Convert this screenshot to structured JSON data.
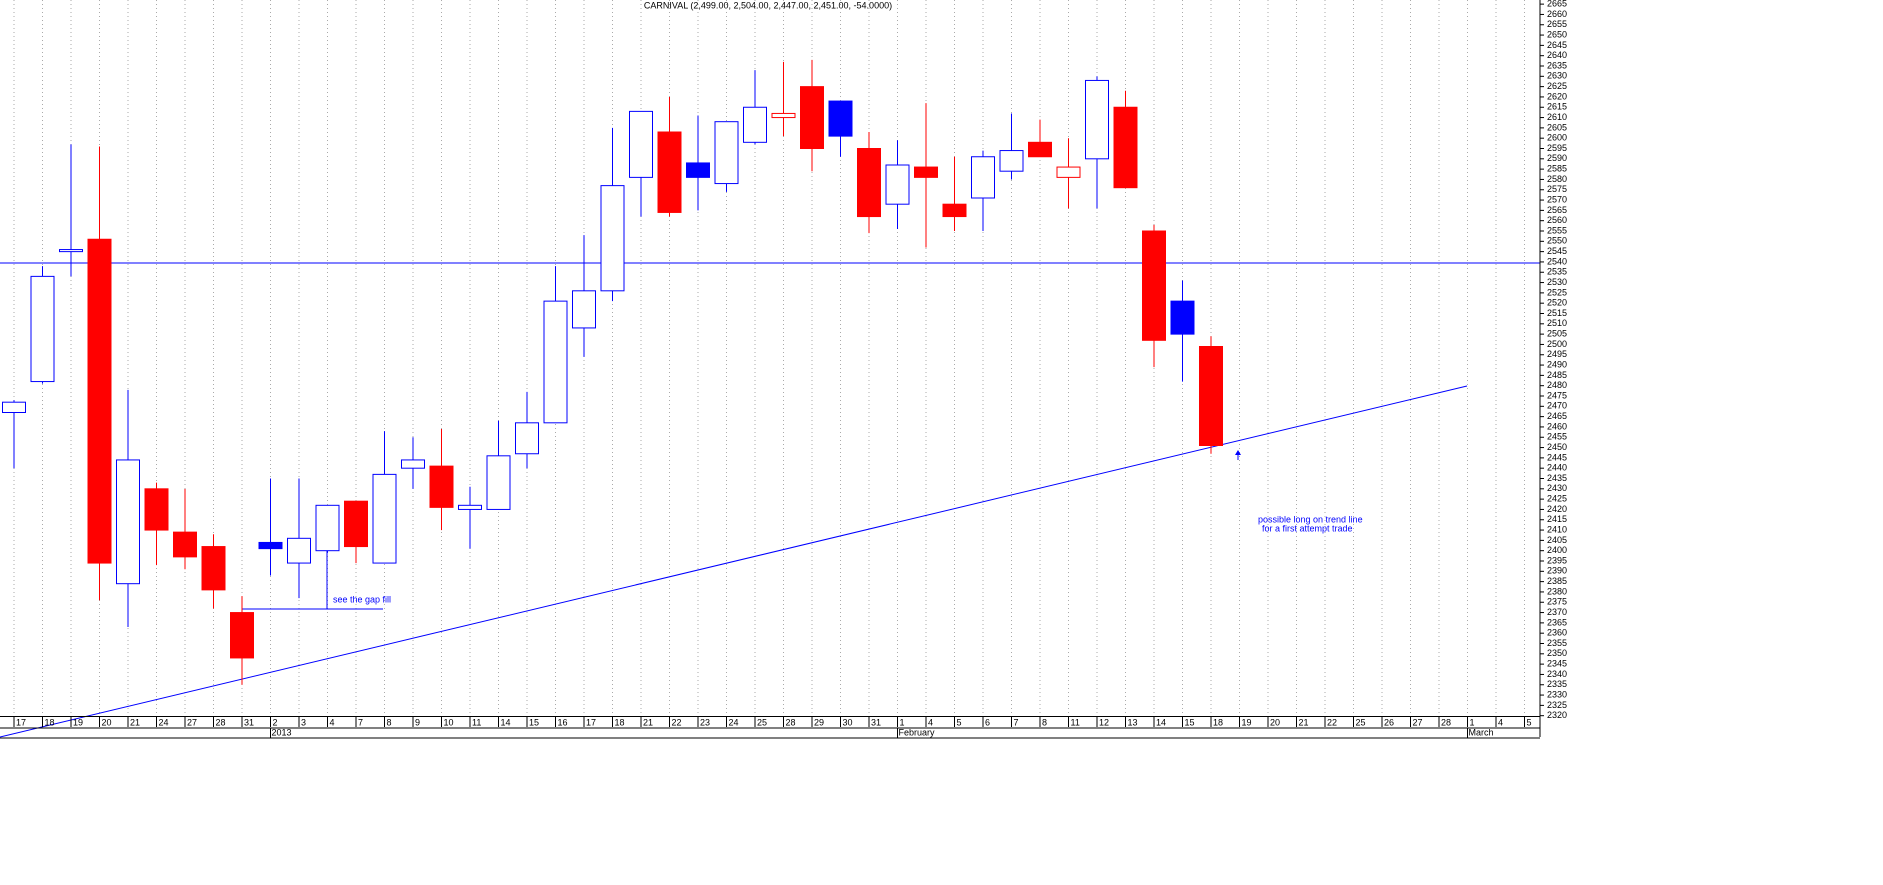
{
  "chart_data": {
    "type": "candlestick",
    "title": "CARNIVAL (2,499.00, 2,504.00, 2,447.00, 2,451.00, -54.0000)",
    "categories": [
      "17",
      "18",
      "19",
      "20",
      "21",
      "24",
      "27",
      "28",
      "31",
      "2",
      "3",
      "4",
      "7",
      "8",
      "9",
      "10",
      "11",
      "14",
      "15",
      "16",
      "17",
      "18",
      "21",
      "22",
      "23",
      "24",
      "25",
      "28",
      "29",
      "30",
      "31",
      "1",
      "4",
      "5",
      "6",
      "7",
      "8",
      "11",
      "12",
      "13",
      "14",
      "15",
      "18",
      "19",
      "20",
      "21",
      "22",
      "25",
      "26",
      "27",
      "28",
      "1",
      "4",
      "5"
    ],
    "month_labels": [
      {
        "category": 9,
        "label": "2013"
      },
      {
        "category": 31,
        "label": "February"
      },
      {
        "category": 51,
        "label": "March"
      }
    ],
    "open": [
      2467,
      2482,
      2545,
      2551,
      2384,
      2430,
      2409,
      2402,
      2370,
      2404,
      2394,
      2400,
      2424,
      2394,
      2440,
      2441,
      2420,
      2420,
      2447,
      2462,
      2508,
      2526,
      2581,
      2603,
      2588,
      2578,
      2598,
      2610,
      2625,
      2618,
      2595,
      2568,
      2586,
      2568,
      2571,
      2584,
      2598,
      2581,
      2590,
      2615,
      2555,
      2521,
      2499,
      null,
      null,
      null,
      null,
      null,
      null,
      null,
      null,
      null,
      null,
      null
    ],
    "high": [
      2473,
      2538,
      2597,
      2596,
      2478,
      2433,
      2430,
      2408,
      2378,
      2435,
      2435,
      2422,
      2424,
      2458,
      2455,
      2459,
      2431,
      2463,
      2477,
      2538,
      2553,
      2605,
      2613,
      2620,
      2611,
      2608,
      2633,
      2637,
      2638,
      2618,
      2603,
      2599,
      2617,
      2591,
      2594,
      2612,
      2609,
      2600,
      2630,
      2623,
      2558,
      2531,
      2504,
      null,
      null,
      null,
      null,
      null,
      null,
      null,
      null,
      null,
      null,
      null
    ],
    "low": [
      2440,
      2481,
      2533,
      2376,
      2363,
      2393,
      2391,
      2372,
      2335,
      2388,
      2377,
      2399,
      2394,
      2394,
      2430,
      2410,
      2401,
      2420,
      2440,
      2462,
      2494,
      2521,
      2562,
      2562,
      2565,
      2574,
      2597,
      2601,
      2584,
      2591,
      2554,
      2556,
      2547,
      2555,
      2555,
      2580,
      2591,
      2566,
      2566,
      2576,
      2489,
      2482,
      2447,
      null,
      null,
      null,
      null,
      null,
      null,
      null,
      null,
      null,
      null,
      null
    ],
    "close": [
      2472,
      2533,
      2546,
      2394,
      2444,
      2410,
      2397,
      2381,
      2348,
      2401,
      2406,
      2422,
      2402,
      2437,
      2444,
      2421,
      2422,
      2446,
      2462,
      2521,
      2526,
      2577,
      2613,
      2564,
      2581,
      2608,
      2615,
      2612,
      2595,
      2601,
      2562,
      2587,
      2581,
      2562,
      2591,
      2594,
      2591,
      2586,
      2628,
      2576,
      2502,
      2505,
      2451,
      null,
      null,
      null,
      null,
      null,
      null,
      null,
      null,
      null,
      null,
      null
    ],
    "up_color": "#0000ff",
    "down_color": "#ff0000",
    "ylim": [
      2315,
      2667
    ],
    "yticks": [
      2320,
      2325,
      2330,
      2335,
      2340,
      2345,
      2350,
      2355,
      2360,
      2365,
      2370,
      2375,
      2380,
      2385,
      2390,
      2395,
      2400,
      2405,
      2410,
      2415,
      2420,
      2425,
      2430,
      2435,
      2440,
      2445,
      2450,
      2455,
      2460,
      2465,
      2470,
      2475,
      2480,
      2485,
      2490,
      2495,
      2500,
      2505,
      2510,
      2515,
      2520,
      2525,
      2530,
      2535,
      2540,
      2545,
      2550,
      2555,
      2560,
      2565,
      2570,
      2575,
      2580,
      2585,
      2590,
      2595,
      2600,
      2605,
      2610,
      2615,
      2620,
      2625,
      2630,
      2635,
      2640,
      2645,
      2650,
      2655,
      2660,
      2665
    ],
    "annotations": [
      "see the gap fill",
      "possible long on trend line",
      "for a first attempt trade"
    ]
  }
}
